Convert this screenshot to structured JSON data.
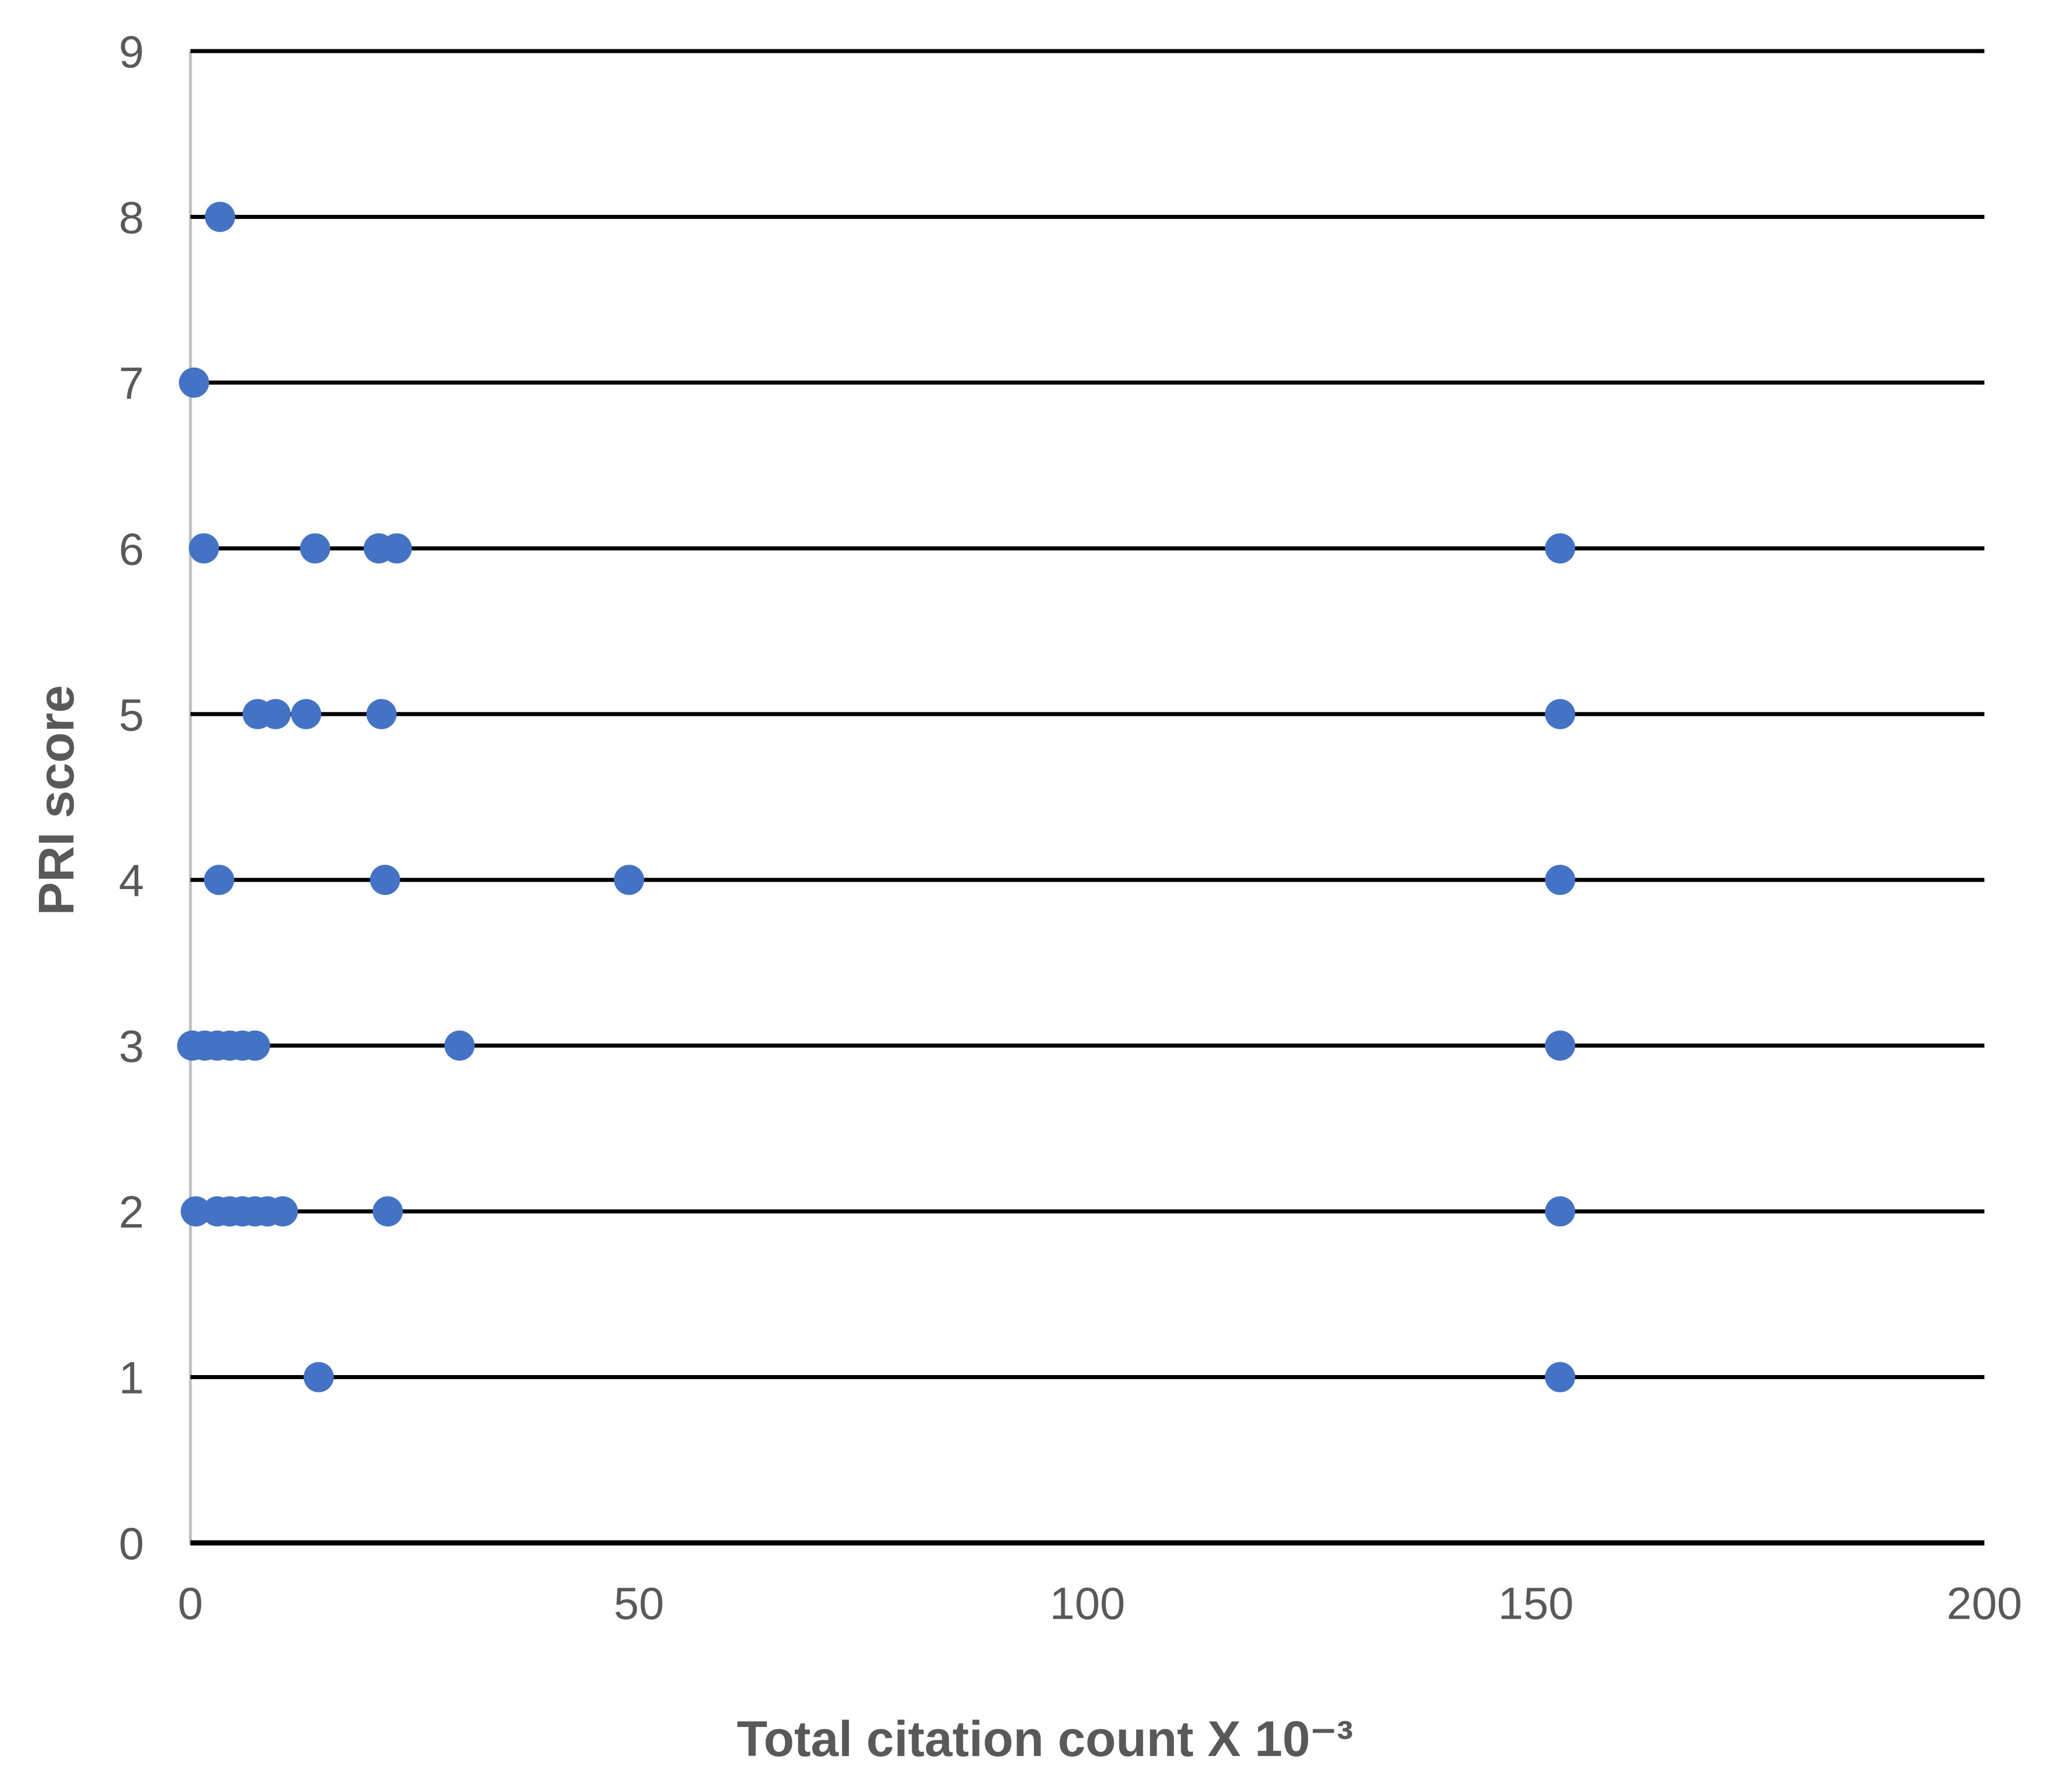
{
  "figure": {
    "xlabel": "Total citation count X 10⁻³",
    "ylabel": "PRI score"
  },
  "chart_data": {
    "type": "scatter",
    "title": "",
    "xlabel": "Total citation count X 10⁻³",
    "ylabel": "PRI score",
    "xlim": [
      0,
      200
    ],
    "ylim": [
      0,
      9
    ],
    "x_ticks": [
      0,
      50,
      100,
      150,
      200
    ],
    "y_ticks": [
      0,
      1,
      2,
      3,
      4,
      5,
      6,
      7,
      8,
      9
    ],
    "grid": "horizontal-black-lines",
    "legend": "none",
    "point_color": "#4472C4",
    "axis_text_color": "#595959",
    "gridline_color": "#000000",
    "y_axis_line_color": "#BFBFBF",
    "series": [
      {
        "name": "PRI score vs total citation count",
        "points": [
          {
            "x": 3.3,
            "y": 8
          },
          {
            "x": 0.4,
            "y": 7
          },
          {
            "x": 1.5,
            "y": 6
          },
          {
            "x": 13.9,
            "y": 6
          },
          {
            "x": 21.0,
            "y": 6
          },
          {
            "x": 23.0,
            "y": 6
          },
          {
            "x": 152.7,
            "y": 6
          },
          {
            "x": 7.5,
            "y": 5
          },
          {
            "x": 9.5,
            "y": 5
          },
          {
            "x": 12.9,
            "y": 5
          },
          {
            "x": 21.3,
            "y": 5
          },
          {
            "x": 152.7,
            "y": 5
          },
          {
            "x": 3.2,
            "y": 4
          },
          {
            "x": 21.7,
            "y": 4
          },
          {
            "x": 48.9,
            "y": 4
          },
          {
            "x": 152.7,
            "y": 4
          },
          {
            "x": 0.2,
            "y": 3
          },
          {
            "x": 1.6,
            "y": 3
          },
          {
            "x": 3.0,
            "y": 3
          },
          {
            "x": 4.4,
            "y": 3
          },
          {
            "x": 5.8,
            "y": 3
          },
          {
            "x": 7.2,
            "y": 3
          },
          {
            "x": 30.0,
            "y": 3
          },
          {
            "x": 152.7,
            "y": 3
          },
          {
            "x": 0.6,
            "y": 2
          },
          {
            "x": 3.0,
            "y": 2
          },
          {
            "x": 4.4,
            "y": 2
          },
          {
            "x": 5.8,
            "y": 2
          },
          {
            "x": 7.2,
            "y": 2
          },
          {
            "x": 8.6,
            "y": 2
          },
          {
            "x": 10.3,
            "y": 2
          },
          {
            "x": 22.0,
            "y": 2
          },
          {
            "x": 152.7,
            "y": 2
          },
          {
            "x": 14.3,
            "y": 1
          },
          {
            "x": 152.7,
            "y": 1
          }
        ]
      }
    ]
  }
}
